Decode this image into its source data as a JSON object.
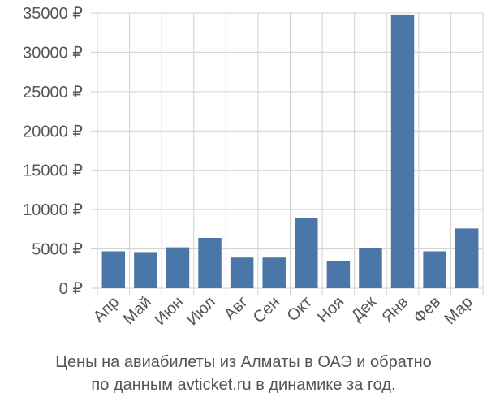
{
  "chart_data": {
    "type": "bar",
    "categories": [
      "Апр",
      "Май",
      "Июн",
      "Июл",
      "Авг",
      "Сен",
      "Окт",
      "Ноя",
      "Дек",
      "Янв",
      "Фев",
      "Мар"
    ],
    "values": [
      4700,
      4600,
      5200,
      6400,
      3900,
      3900,
      8900,
      3500,
      5100,
      34800,
      4700,
      7600
    ],
    "ylim": [
      0,
      35000
    ],
    "yticks": [
      0,
      5000,
      10000,
      15000,
      20000,
      25000,
      30000,
      35000
    ],
    "ytick_labels": [
      "0 ₽",
      "5000 ₽",
      "10000 ₽",
      "15000 ₽",
      "20000 ₽",
      "25000 ₽",
      "30000 ₽",
      "35000 ₽"
    ],
    "grid": true,
    "bar_color": "#4a76a8",
    "grid_color": "#d0d0d0"
  },
  "caption": {
    "line1": "Цены на авиабилеты из Алматы в ОАЭ и обратно",
    "line2": "по данным avticket.ru в динамике за год."
  }
}
